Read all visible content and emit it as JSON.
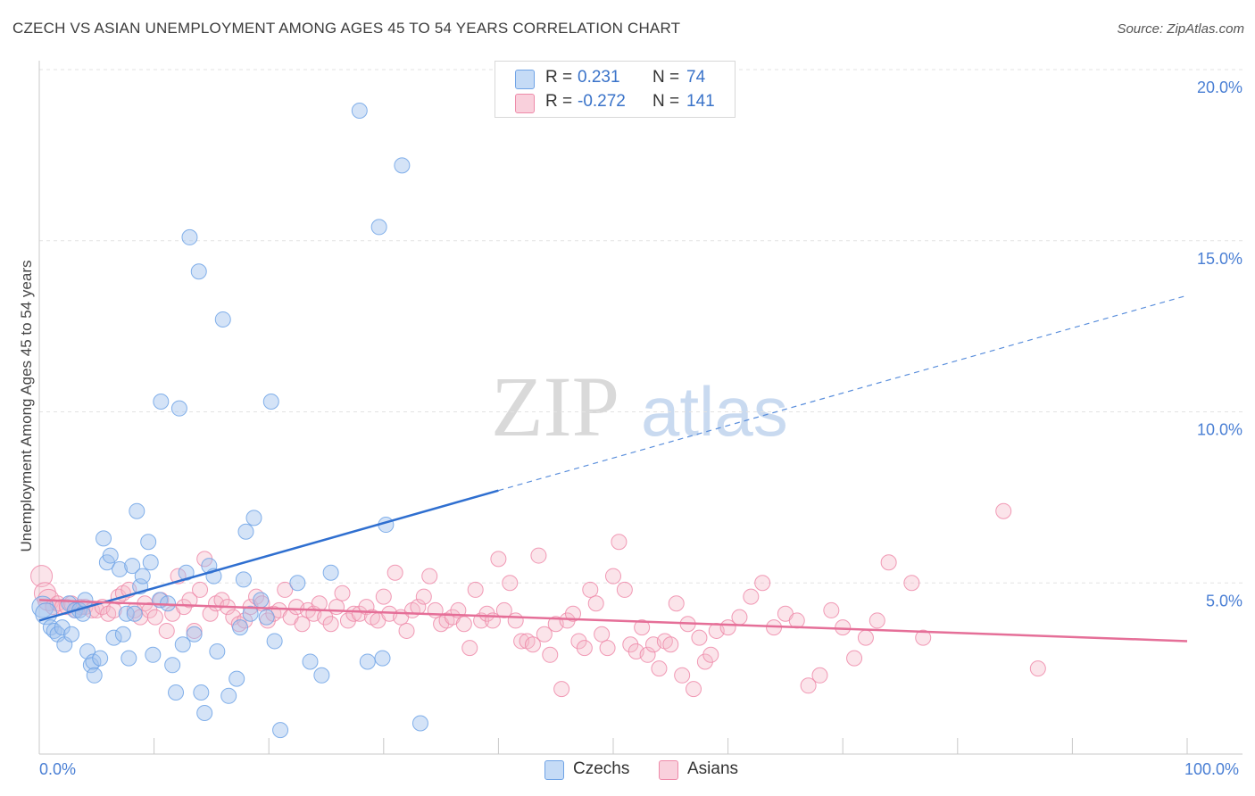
{
  "title": "CZECH VS ASIAN UNEMPLOYMENT AMONG AGES 45 TO 54 YEARS CORRELATION CHART",
  "source": "Source: ZipAtlas.com",
  "watermark": {
    "zip": "ZIP",
    "atlas": "atlas"
  },
  "legend": {
    "czechs": {
      "r_label": "R =",
      "r_value": "0.231",
      "n_label": "N =",
      "n_value": "74",
      "color": "#9fc2ee"
    },
    "asians": {
      "r_label": "R =",
      "r_value": "-0.272",
      "n_label": "N =",
      "n_value": "141",
      "color": "#f5b7c9"
    }
  },
  "bottom_legend": {
    "czechs": "Czechs",
    "asians": "Asians"
  },
  "chart_data": {
    "type": "scatter",
    "title": "CZECH VS ASIAN UNEMPLOYMENT AMONG AGES 45 TO 54 YEARS CORRELATION CHART",
    "xlabel": "",
    "ylabel": "Unemployment Among Ages 45 to 54 years",
    "xlim": [
      0,
      100
    ],
    "ylim": [
      0,
      20
    ],
    "x_tick_labels": [
      "0.0%",
      "100.0%"
    ],
    "y_ticks": [
      5,
      10,
      15,
      20
    ],
    "y_tick_labels": [
      "5.0%",
      "10.0%",
      "15.0%",
      "20.0%"
    ],
    "grid": true,
    "legend_position": "top-center",
    "series": [
      {
        "name": "Czechs",
        "color": "#6fa3e6",
        "trend": {
          "x": [
            0,
            100
          ],
          "y": [
            3.9,
            13.4
          ],
          "solid_until_x": 40
        },
        "points": [
          [
            0.3,
            4.3
          ],
          [
            0.6,
            4.1
          ],
          [
            1.0,
            3.7
          ],
          [
            1.3,
            3.6
          ],
          [
            1.6,
            3.5
          ],
          [
            2.0,
            3.7
          ],
          [
            2.2,
            3.2
          ],
          [
            2.6,
            4.4
          ],
          [
            2.8,
            3.5
          ],
          [
            3.1,
            4.2
          ],
          [
            3.5,
            4.2
          ],
          [
            3.8,
            4.1
          ],
          [
            4.0,
            4.5
          ],
          [
            4.2,
            3.0
          ],
          [
            4.5,
            2.6
          ],
          [
            4.7,
            2.7
          ],
          [
            4.8,
            2.3
          ],
          [
            5.3,
            2.8
          ],
          [
            5.6,
            6.3
          ],
          [
            5.9,
            5.6
          ],
          [
            6.2,
            5.8
          ],
          [
            6.5,
            3.4
          ],
          [
            7.0,
            5.4
          ],
          [
            7.3,
            3.5
          ],
          [
            7.6,
            4.1
          ],
          [
            7.8,
            2.8
          ],
          [
            8.1,
            5.5
          ],
          [
            8.3,
            4.1
          ],
          [
            8.5,
            7.1
          ],
          [
            8.8,
            4.9
          ],
          [
            9.0,
            5.2
          ],
          [
            9.5,
            6.2
          ],
          [
            9.7,
            5.6
          ],
          [
            9.9,
            2.9
          ],
          [
            10.5,
            4.5
          ],
          [
            10.6,
            10.3
          ],
          [
            11.2,
            4.4
          ],
          [
            11.6,
            2.6
          ],
          [
            11.9,
            1.8
          ],
          [
            12.2,
            10.1
          ],
          [
            12.5,
            3.2
          ],
          [
            12.8,
            5.3
          ],
          [
            13.1,
            15.1
          ],
          [
            13.5,
            3.5
          ],
          [
            13.9,
            14.1
          ],
          [
            14.1,
            1.8
          ],
          [
            14.4,
            1.2
          ],
          [
            14.8,
            5.5
          ],
          [
            15.2,
            5.2
          ],
          [
            15.5,
            3.0
          ],
          [
            16.0,
            12.7
          ],
          [
            16.5,
            1.7
          ],
          [
            17.2,
            2.2
          ],
          [
            17.5,
            3.7
          ],
          [
            17.8,
            5.1
          ],
          [
            18.0,
            6.5
          ],
          [
            18.4,
            4.1
          ],
          [
            18.7,
            6.9
          ],
          [
            19.3,
            4.5
          ],
          [
            19.8,
            4.0
          ],
          [
            20.2,
            10.3
          ],
          [
            20.5,
            3.3
          ],
          [
            21.0,
            0.7
          ],
          [
            22.5,
            5.0
          ],
          [
            23.6,
            2.7
          ],
          [
            24.6,
            2.3
          ],
          [
            25.4,
            5.3
          ],
          [
            27.9,
            18.8
          ],
          [
            28.6,
            2.7
          ],
          [
            29.6,
            15.4
          ],
          [
            29.9,
            2.8
          ],
          [
            30.2,
            6.7
          ],
          [
            31.6,
            17.2
          ],
          [
            33.2,
            0.9
          ]
        ]
      },
      {
        "name": "Asians",
        "color": "#ee8aa9",
        "trend": {
          "x": [
            0,
            100
          ],
          "y": [
            4.5,
            3.3
          ]
        },
        "points": [
          [
            0.2,
            5.2
          ],
          [
            0.5,
            4.7
          ],
          [
            0.8,
            4.5
          ],
          [
            1.2,
            4.3
          ],
          [
            1.6,
            4.4
          ],
          [
            2.0,
            4.3
          ],
          [
            2.4,
            4.3
          ],
          [
            2.8,
            4.4
          ],
          [
            3.2,
            4.2
          ],
          [
            3.6,
            4.3
          ],
          [
            4.0,
            4.3
          ],
          [
            4.6,
            4.2
          ],
          [
            5.0,
            4.2
          ],
          [
            5.5,
            4.3
          ],
          [
            6.0,
            4.1
          ],
          [
            6.5,
            4.2
          ],
          [
            6.9,
            4.6
          ],
          [
            7.3,
            4.7
          ],
          [
            7.8,
            4.8
          ],
          [
            8.3,
            4.2
          ],
          [
            8.8,
            4.0
          ],
          [
            9.2,
            4.4
          ],
          [
            9.6,
            4.2
          ],
          [
            10.1,
            4.0
          ],
          [
            10.6,
            4.5
          ],
          [
            11.1,
            3.6
          ],
          [
            11.6,
            4.1
          ],
          [
            12.1,
            5.2
          ],
          [
            12.6,
            4.3
          ],
          [
            13.1,
            4.5
          ],
          [
            13.5,
            3.6
          ],
          [
            14.0,
            4.8
          ],
          [
            14.4,
            5.7
          ],
          [
            14.9,
            4.1
          ],
          [
            15.4,
            4.4
          ],
          [
            15.9,
            4.5
          ],
          [
            16.4,
            4.3
          ],
          [
            16.9,
            4.0
          ],
          [
            17.4,
            3.8
          ],
          [
            17.9,
            3.9
          ],
          [
            18.4,
            4.3
          ],
          [
            18.9,
            4.6
          ],
          [
            19.4,
            4.4
          ],
          [
            19.9,
            3.9
          ],
          [
            20.4,
            4.1
          ],
          [
            20.9,
            4.2
          ],
          [
            21.4,
            4.8
          ],
          [
            21.9,
            4.0
          ],
          [
            22.4,
            4.3
          ],
          [
            22.9,
            3.8
          ],
          [
            23.4,
            4.2
          ],
          [
            23.9,
            4.1
          ],
          [
            24.4,
            4.4
          ],
          [
            24.9,
            4.0
          ],
          [
            25.4,
            3.8
          ],
          [
            25.9,
            4.3
          ],
          [
            26.4,
            4.7
          ],
          [
            26.9,
            3.9
          ],
          [
            27.4,
            4.1
          ],
          [
            27.9,
            4.1
          ],
          [
            28.5,
            4.3
          ],
          [
            29.0,
            4.0
          ],
          [
            29.5,
            3.9
          ],
          [
            30.0,
            4.6
          ],
          [
            30.5,
            4.1
          ],
          [
            31.0,
            5.3
          ],
          [
            31.5,
            4.0
          ],
          [
            32.0,
            3.6
          ],
          [
            32.5,
            4.2
          ],
          [
            33.0,
            4.3
          ],
          [
            33.5,
            4.6
          ],
          [
            34.0,
            5.2
          ],
          [
            34.5,
            4.2
          ],
          [
            35.0,
            3.8
          ],
          [
            35.5,
            3.9
          ],
          [
            36.0,
            4.0
          ],
          [
            36.5,
            4.2
          ],
          [
            37.0,
            3.8
          ],
          [
            37.5,
            3.1
          ],
          [
            38.0,
            4.8
          ],
          [
            38.5,
            3.9
          ],
          [
            39.0,
            4.1
          ],
          [
            39.5,
            3.9
          ],
          [
            40.0,
            5.7
          ],
          [
            40.5,
            4.2
          ],
          [
            41.0,
            5.0
          ],
          [
            41.5,
            3.9
          ],
          [
            42.0,
            3.3
          ],
          [
            42.5,
            3.3
          ],
          [
            43.0,
            3.2
          ],
          [
            43.5,
            5.8
          ],
          [
            44.0,
            3.5
          ],
          [
            44.5,
            2.9
          ],
          [
            45.0,
            3.8
          ],
          [
            45.5,
            1.9
          ],
          [
            46.0,
            3.9
          ],
          [
            46.5,
            4.1
          ],
          [
            47.0,
            3.3
          ],
          [
            47.5,
            3.1
          ],
          [
            48.0,
            4.8
          ],
          [
            48.5,
            4.4
          ],
          [
            49.0,
            3.5
          ],
          [
            49.5,
            3.1
          ],
          [
            50.0,
            5.2
          ],
          [
            50.5,
            6.2
          ],
          [
            51.0,
            4.8
          ],
          [
            51.5,
            3.2
          ],
          [
            52.0,
            3.0
          ],
          [
            52.5,
            3.7
          ],
          [
            53.0,
            2.9
          ],
          [
            53.5,
            3.2
          ],
          [
            54.0,
            2.5
          ],
          [
            54.5,
            3.3
          ],
          [
            55.0,
            3.2
          ],
          [
            55.5,
            4.4
          ],
          [
            56.0,
            2.3
          ],
          [
            56.5,
            3.8
          ],
          [
            57.0,
            1.9
          ],
          [
            57.5,
            3.4
          ],
          [
            58.0,
            2.7
          ],
          [
            58.5,
            2.9
          ],
          [
            59.0,
            3.6
          ],
          [
            60.0,
            3.7
          ],
          [
            61.0,
            4.0
          ],
          [
            62.0,
            4.6
          ],
          [
            63.0,
            5.0
          ],
          [
            64.0,
            3.7
          ],
          [
            65.0,
            4.1
          ],
          [
            66.0,
            3.9
          ],
          [
            67.0,
            2.0
          ],
          [
            68.0,
            2.3
          ],
          [
            69.0,
            4.2
          ],
          [
            70.0,
            3.7
          ],
          [
            71.0,
            2.8
          ],
          [
            72.0,
            3.4
          ],
          [
            73.0,
            3.9
          ],
          [
            74.0,
            5.6
          ],
          [
            76.0,
            5.0
          ],
          [
            77.0,
            3.4
          ],
          [
            84.0,
            7.1
          ],
          [
            87.0,
            2.5
          ]
        ]
      }
    ]
  }
}
